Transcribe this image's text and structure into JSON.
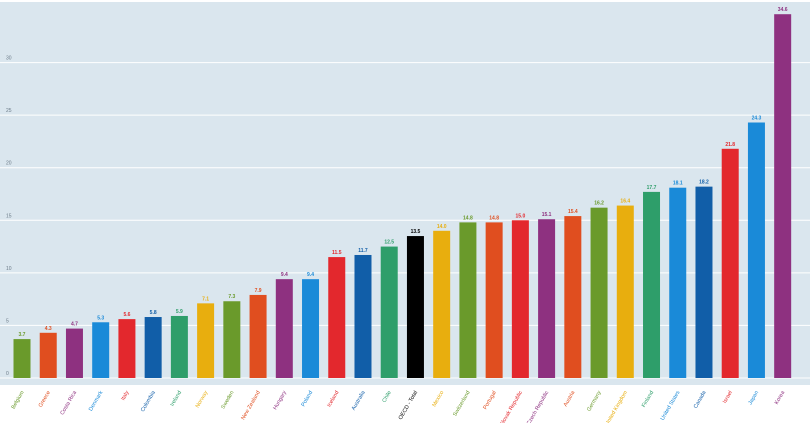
{
  "chart_data": {
    "type": "bar",
    "title": "",
    "xlabel": "",
    "ylabel": "",
    "ylim": [
      0,
      35
    ],
    "yticks": [
      0,
      5,
      10,
      15,
      20,
      25,
      30
    ],
    "grid": true,
    "legend": "none",
    "background_color": "#dae6ee",
    "categories": [
      "Belgium",
      "Greece",
      "Costa Rica",
      "Denmark",
      "Italy",
      "Colombia",
      "Ireland",
      "Norway",
      "Sweden",
      "New Zealand",
      "Hungary",
      "Poland",
      "Iceland",
      "Australia",
      "Chile",
      "OECD - Total",
      "Mexico",
      "Switzerland",
      "Portugal",
      "Slovak Republic",
      "Czech Republic",
      "Austria",
      "Germany",
      "United Kingdom",
      "Finland",
      "United States",
      "Canada",
      "Israel",
      "Japan",
      "Korea"
    ],
    "values": [
      3.7,
      4.3,
      4.7,
      5.3,
      5.6,
      5.8,
      5.9,
      7.1,
      7.3,
      7.9,
      9.4,
      9.4,
      11.5,
      11.7,
      12.5,
      13.5,
      14.0,
      14.8,
      14.8,
      15.0,
      15.1,
      15.4,
      16.2,
      16.4,
      17.7,
      18.1,
      18.2,
      21.8,
      24.3,
      34.6
    ],
    "value_labels": [
      "3.7",
      "4.3",
      "4.7",
      "5.3",
      "5.6",
      "5.8",
      "5.9",
      "7.1",
      "7.3",
      "7.9",
      "9.4",
      "9.4",
      "11.5",
      "11.7",
      "12.5",
      "13.5",
      "14.0",
      "14.8",
      "14.8",
      "15.0",
      "15.1",
      "15.4",
      "16.2",
      "16.4",
      "17.7",
      "18.1",
      "18.2",
      "21.8",
      "24.3",
      "34.6"
    ],
    "colors": [
      "#6a9a2b",
      "#e04e1f",
      "#8e3180",
      "#1a8ad8",
      "#e3282d",
      "#115ea8",
      "#2e9e6a",
      "#e8ae0e",
      "#6a9a2b",
      "#e04e1f",
      "#8e3180",
      "#1a8ad8",
      "#e3282d",
      "#115ea8",
      "#2e9e6a",
      "#000000",
      "#e8ae0e",
      "#6a9a2b",
      "#e04e1f",
      "#e3282d",
      "#8e3180",
      "#e04e1f",
      "#6a9a2b",
      "#e8ae0e",
      "#2e9e6a",
      "#1a8ad8",
      "#115ea8",
      "#e3282d",
      "#1a8ad8",
      "#8e3180"
    ]
  }
}
